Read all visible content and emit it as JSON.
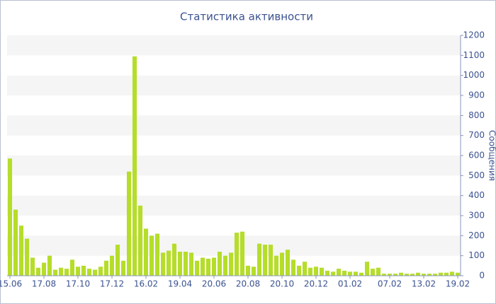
{
  "chart_data": {
    "type": "bar",
    "title": "Статистика активности",
    "y_label": "Сообщения",
    "color": "#b5dd2a",
    "categories": [
      "15.06",
      null,
      null,
      null,
      null,
      null,
      "17.08",
      null,
      null,
      null,
      null,
      null,
      "17.10",
      null,
      null,
      null,
      null,
      null,
      "17.12",
      null,
      null,
      null,
      null,
      null,
      "16.02",
      null,
      null,
      null,
      null,
      null,
      "19.04",
      null,
      null,
      null,
      null,
      null,
      "20.06",
      null,
      null,
      null,
      null,
      null,
      "20.08",
      null,
      null,
      null,
      null,
      null,
      "20.10",
      null,
      null,
      null,
      null,
      null,
      "20.12",
      null,
      null,
      null,
      null,
      null,
      "01.02",
      null,
      null,
      null,
      null,
      null,
      null,
      "07.02",
      null,
      null,
      null,
      null,
      null,
      "13.02",
      null,
      null,
      null,
      null,
      null,
      "19.02"
    ],
    "values": [
      585,
      330,
      250,
      185,
      90,
      40,
      65,
      100,
      30,
      40,
      35,
      80,
      45,
      50,
      35,
      30,
      45,
      75,
      100,
      155,
      75,
      520,
      1095,
      350,
      235,
      200,
      210,
      115,
      125,
      160,
      120,
      120,
      115,
      75,
      90,
      85,
      90,
      120,
      100,
      115,
      215,
      220,
      50,
      45,
      160,
      155,
      155,
      100,
      115,
      130,
      80,
      50,
      70,
      40,
      45,
      40,
      25,
      20,
      35,
      25,
      20,
      20,
      15,
      70,
      35,
      40,
      10,
      10,
      10,
      15,
      10,
      10,
      15,
      10,
      10,
      10,
      15,
      15,
      20,
      15
    ],
    "ylim": [
      0,
      1200
    ],
    "yticks": [
      0,
      100,
      200,
      300,
      400,
      500,
      600,
      700,
      800,
      900,
      1000,
      1100,
      1200
    ],
    "grid": "bands"
  }
}
